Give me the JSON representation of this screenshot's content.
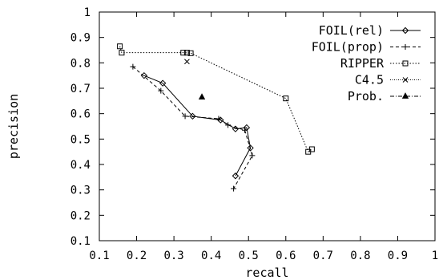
{
  "chart_data": {
    "type": "line",
    "xlabel": "recall",
    "ylabel": "precision",
    "xlim": [
      0.1,
      1.0
    ],
    "ylim": [
      0.1,
      1.0
    ],
    "x_ticks": [
      0.1,
      0.2,
      0.3,
      0.4,
      0.5,
      0.6,
      0.7,
      0.8,
      0.9,
      1.0
    ],
    "y_ticks": [
      0.1,
      0.2,
      0.3,
      0.4,
      0.5,
      0.6,
      0.7,
      0.8,
      0.9,
      1.0
    ],
    "x_tick_labels": [
      "0.1",
      "0.2",
      "0.3",
      "0.4",
      "0.5",
      "0.6",
      "0.7",
      "0.8",
      "0.9",
      "1"
    ],
    "y_tick_labels": [
      "0.1",
      "0.2",
      "0.3",
      "0.4",
      "0.5",
      "0.6",
      "0.7",
      "0.8",
      "0.9",
      "1"
    ],
    "grid": false,
    "legend_position": "top-right",
    "series": [
      {
        "name": "FOIL(rel)",
        "marker": "diamond",
        "line": "solid",
        "points": [
          [
            0.22,
            0.75
          ],
          [
            0.27,
            0.72
          ],
          [
            0.35,
            0.59
          ],
          [
            0.425,
            0.575
          ],
          [
            0.465,
            0.54
          ],
          [
            0.495,
            0.545
          ],
          [
            0.505,
            0.465
          ],
          [
            0.465,
            0.355
          ]
        ]
      },
      {
        "name": "FOIL(prop)",
        "marker": "plus",
        "line": "dashed",
        "points": [
          [
            0.19,
            0.785
          ],
          [
            0.265,
            0.69
          ],
          [
            0.33,
            0.59
          ],
          [
            0.42,
            0.58
          ],
          [
            0.445,
            0.555
          ],
          [
            0.49,
            0.535
          ],
          [
            0.51,
            0.435
          ],
          [
            0.46,
            0.305
          ]
        ]
      },
      {
        "name": "RIPPER",
        "marker": "square",
        "line": "dotted",
        "points": [
          [
            0.155,
            0.865
          ],
          [
            0.16,
            0.84
          ],
          [
            0.325,
            0.84
          ],
          [
            0.335,
            0.84
          ],
          [
            0.345,
            0.838
          ],
          [
            0.6,
            0.66
          ],
          [
            0.66,
            0.45
          ],
          [
            0.67,
            0.46
          ]
        ]
      },
      {
        "name": "C4.5",
        "marker": "cross",
        "line": "dotted-fine",
        "points": [
          [
            0.335,
            0.805
          ]
        ]
      },
      {
        "name": "Prob.",
        "marker": "triangle",
        "line": "dashdot",
        "points": [
          [
            0.375,
            0.665
          ]
        ]
      }
    ]
  }
}
